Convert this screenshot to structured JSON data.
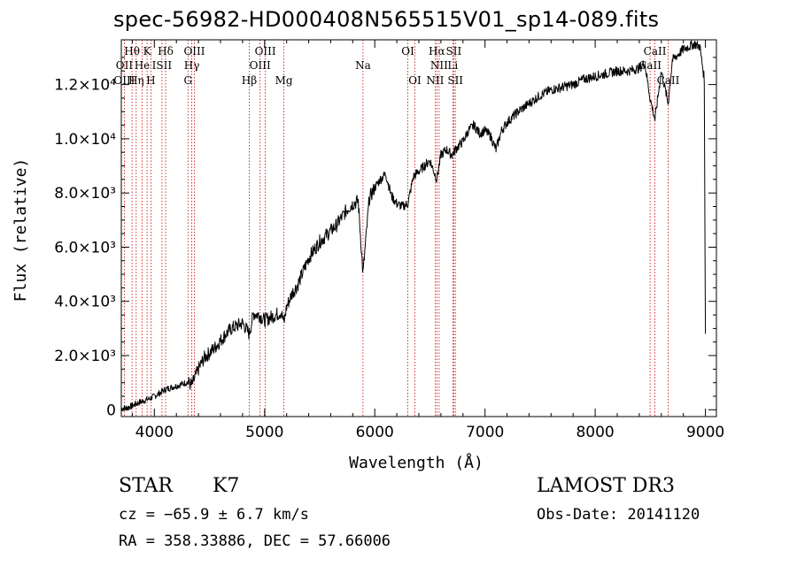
{
  "header": {
    "title": "spec-56982-HD000408N565515V01_sp14-089.fits"
  },
  "info": {
    "object_class": "STAR",
    "subclass": "K7",
    "cz": "cz = −65.9 ± 6.7 km/s",
    "radec": "RA = 358.33886, DEC =  57.66006",
    "survey": "LAMOST DR3",
    "obs_date": "Obs-Date: 20141120"
  },
  "chart_data": {
    "type": "line",
    "title": "spec-56982-HD000408N565515V01_sp14-089.fits",
    "xlabel": "Wavelength (Å)",
    "ylabel": "Flux (relative)",
    "xlim": [
      3700,
      9100
    ],
    "ylim": [
      -250,
      13650
    ],
    "x_ticks": [
      4000,
      5000,
      6000,
      7000,
      8000,
      9000
    ],
    "y_ticks": [
      {
        "value": 0,
        "label": "0"
      },
      {
        "value": 2000,
        "label": "2.0×10³"
      },
      {
        "value": 4000,
        "label": "4.0×10³"
      },
      {
        "value": 6000,
        "label": "6.0×10³"
      },
      {
        "value": 8000,
        "label": "8.0×10³"
      },
      {
        "value": 10000,
        "label": "1.0×10⁴"
      },
      {
        "value": 12000,
        "label": "1.2×10⁴"
      }
    ],
    "grid": false,
    "series": [
      {
        "name": "spectrum",
        "x": [
          3700,
          3750,
          3800,
          3850,
          3900,
          3950,
          4000,
          4050,
          4100,
          4150,
          4200,
          4250,
          4300,
          4340,
          4400,
          4450,
          4500,
          4550,
          4600,
          4650,
          4700,
          4750,
          4800,
          4861,
          4900,
          4950,
          5000,
          5050,
          5100,
          5150,
          5175,
          5200,
          5250,
          5300,
          5350,
          5400,
          5450,
          5500,
          5550,
          5600,
          5650,
          5700,
          5750,
          5800,
          5850,
          5893,
          5950,
          6000,
          6050,
          6100,
          6150,
          6200,
          6250,
          6300,
          6350,
          6400,
          6450,
          6500,
          6563,
          6600,
          6650,
          6700,
          6750,
          6800,
          6850,
          6900,
          6950,
          7000,
          7050,
          7100,
          7150,
          7200,
          7300,
          7400,
          7500,
          7600,
          7700,
          7800,
          7900,
          8000,
          8100,
          8200,
          8300,
          8400,
          8450,
          8498,
          8542,
          8600,
          8662,
          8700,
          8750,
          8800,
          8850,
          8900,
          8950,
          8990,
          9000
        ],
        "y": [
          50,
          80,
          150,
          250,
          330,
          400,
          500,
          620,
          750,
          820,
          880,
          950,
          1020,
          900,
          1500,
          1900,
          2100,
          2300,
          2550,
          2800,
          3000,
          3100,
          3200,
          2800,
          3550,
          3500,
          3300,
          3400,
          3500,
          3600,
          3200,
          3800,
          4300,
          4600,
          5100,
          5600,
          5900,
          6200,
          6400,
          6600,
          6800,
          7100,
          7400,
          7600,
          7700,
          5000,
          7800,
          8200,
          8500,
          8700,
          7900,
          7600,
          7500,
          7600,
          8600,
          8800,
          9000,
          9200,
          8500,
          9400,
          9600,
          9400,
          9700,
          9900,
          10300,
          10500,
          10200,
          10300,
          10100,
          9600,
          10300,
          10600,
          11000,
          11300,
          11600,
          11800,
          11900,
          12000,
          12200,
          12300,
          12400,
          12500,
          12500,
          12600,
          12800,
          11500,
          10700,
          12500,
          11300,
          12900,
          13100,
          13300,
          13400,
          13500,
          13400,
          12200,
          2800
        ]
      }
    ],
    "annotations": [
      {
        "label": "Hθ",
        "x": 3797,
        "row": 1
      },
      {
        "label": "K",
        "x": 3934,
        "row": 1
      },
      {
        "label": "Hδ",
        "x": 4102,
        "row": 1
      },
      {
        "label": "OIII",
        "x": 4363,
        "row": 1
      },
      {
        "label": "OIII",
        "x": 5007,
        "row": 1
      },
      {
        "label": "OI",
        "x": 6300,
        "row": 1
      },
      {
        "label": "Hα",
        "x": 6563,
        "row": 1
      },
      {
        "label": "SII",
        "x": 6717,
        "row": 1
      },
      {
        "label": "CaII",
        "x": 8542,
        "row": 1
      },
      {
        "label": "OII",
        "x": 3727,
        "row": 2
      },
      {
        "label": "He",
        "x": 3889,
        "row": 2
      },
      {
        "label": "ISII",
        "x": 4069,
        "row": 2
      },
      {
        "label": "Hγ",
        "x": 4340,
        "row": 2
      },
      {
        "label": "OIII",
        "x": 4959,
        "row": 2
      },
      {
        "label": "Na",
        "x": 5893,
        "row": 2
      },
      {
        "label": "NII",
        "x": 6584,
        "row": 2
      },
      {
        "label": "Li",
        "x": 6708,
        "row": 2
      },
      {
        "label": "CaII",
        "x": 8498,
        "row": 2
      },
      {
        "label": "OIII",
        "x": 3727,
        "row": 3
      },
      {
        "label": "Hη",
        "x": 3835,
        "row": 3
      },
      {
        "label": "H",
        "x": 3968,
        "row": 3
      },
      {
        "label": "G",
        "x": 4305,
        "row": 3
      },
      {
        "label": "Hβ",
        "x": 4861,
        "row": 3
      },
      {
        "label": "Mg",
        "x": 5175,
        "row": 3
      },
      {
        "label": "OI",
        "x": 6364,
        "row": 3
      },
      {
        "label": "NII",
        "x": 6548,
        "row": 3
      },
      {
        "label": "SII",
        "x": 6731,
        "row": 3
      },
      {
        "label": "CaII",
        "x": 8662,
        "row": 3
      }
    ],
    "line_markers": [
      3727,
      3797,
      3835,
      3889,
      3934,
      3968,
      4069,
      4102,
      4305,
      4340,
      4363,
      4861,
      4959,
      5007,
      5175,
      5893,
      6300,
      6364,
      6548,
      6563,
      6584,
      6708,
      6717,
      6731,
      8498,
      8542,
      8662
    ],
    "colors": {
      "spectrum": "#000000",
      "markers": "#cc0000",
      "axes": "#000000"
    }
  }
}
